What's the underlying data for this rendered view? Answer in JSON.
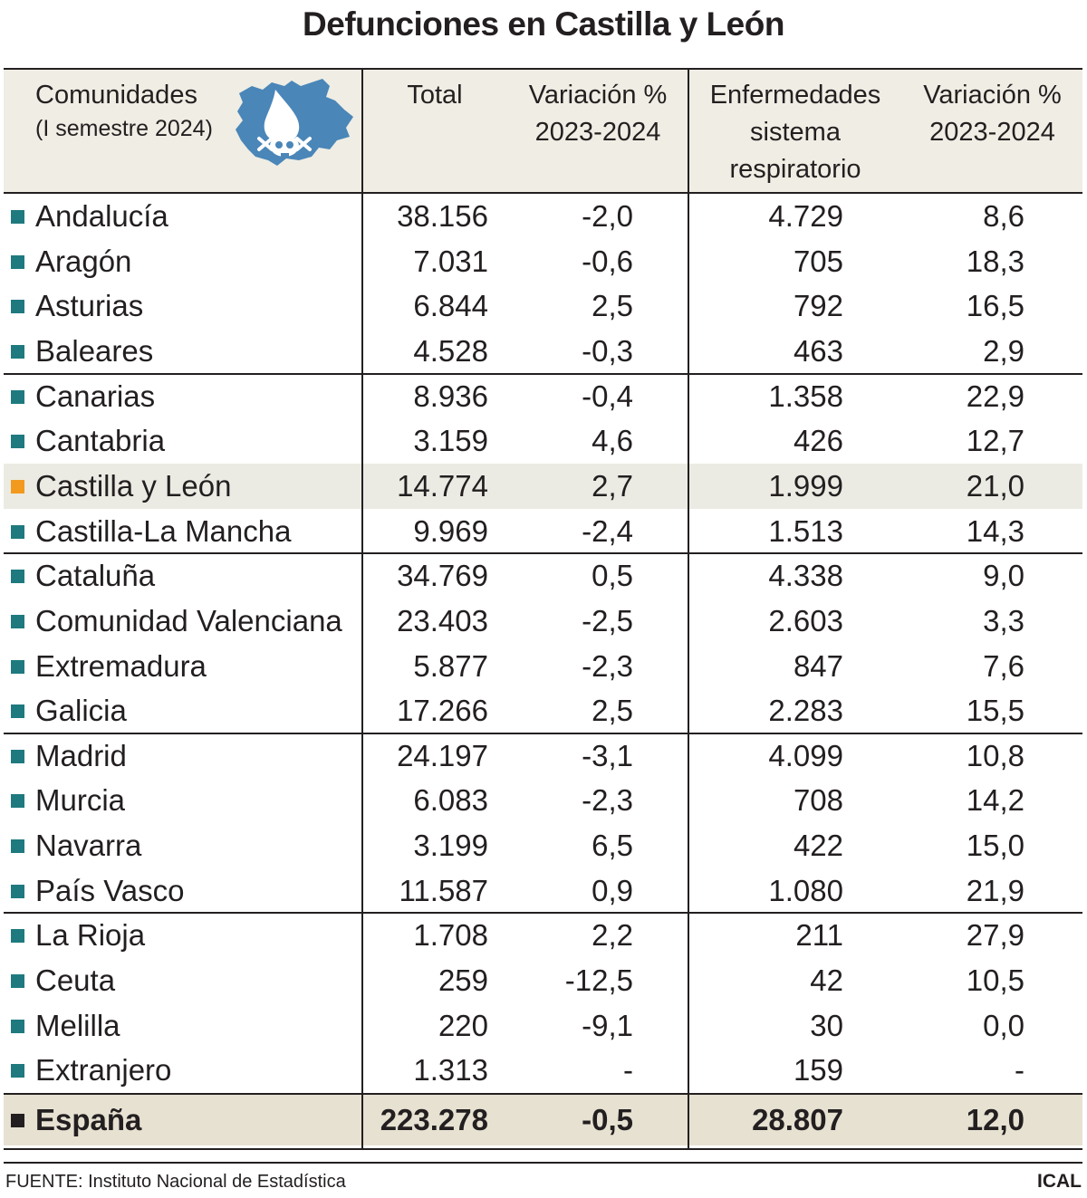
{
  "title": "Defunciones en Castilla y León",
  "colors": {
    "header_bg": "#efede4",
    "highlight_row_bg": "#ebebe3",
    "total_row_bg": "#e6e1d1",
    "marker_default": "#1e7a7e",
    "marker_highlight": "#f29a1e",
    "marker_total": "#231f20",
    "map_fill": "#4a86b8"
  },
  "header": {
    "comunidades_line1": "Comunidades",
    "comunidades_line2": "(I semestre 2024)",
    "total": "Total",
    "variacion1_line1": "Variación %",
    "variacion1_line2": "2023-2024",
    "resp_line1": "Enfermedades",
    "resp_line2": "sistema",
    "resp_line3": "respiratorio",
    "variacion2_line1": "Variación %",
    "variacion2_line2": "2023-2024",
    "map_icon": "castilla-y-leon-map-skull-icon"
  },
  "chart_data": {
    "type": "table",
    "title": "Defunciones en Castilla y León",
    "columns": [
      "Comunidades (I semestre 2024)",
      "Total",
      "Variación % 2023-2024",
      "Enfermedades sistema respiratorio",
      "Variación % 2023-2024"
    ],
    "rows": [
      {
        "name": "Andalucía",
        "total": "38.156",
        "var_total": "-2,0",
        "resp": "4.729",
        "var_resp": "8,6"
      },
      {
        "name": "Aragón",
        "total": "7.031",
        "var_total": "-0,6",
        "resp": "705",
        "var_resp": "18,3"
      },
      {
        "name": "Asturias",
        "total": "6.844",
        "var_total": "2,5",
        "resp": "792",
        "var_resp": "16,5"
      },
      {
        "name": "Baleares",
        "total": "4.528",
        "var_total": "-0,3",
        "resp": "463",
        "var_resp": "2,9"
      },
      {
        "name": "Canarias",
        "total": "8.936",
        "var_total": "-0,4",
        "resp": "1.358",
        "var_resp": "22,9"
      },
      {
        "name": "Cantabria",
        "total": "3.159",
        "var_total": "4,6",
        "resp": "426",
        "var_resp": "12,7"
      },
      {
        "name": "Castilla y León",
        "total": "14.774",
        "var_total": "2,7",
        "resp": "1.999",
        "var_resp": "21,0",
        "highlight": true
      },
      {
        "name": "Castilla-La Mancha",
        "total": "9.969",
        "var_total": "-2,4",
        "resp": "1.513",
        "var_resp": "14,3"
      },
      {
        "name": "Cataluña",
        "total": "34.769",
        "var_total": "0,5",
        "resp": "4.338",
        "var_resp": "9,0"
      },
      {
        "name": "Comunidad Valenciana",
        "total": "23.403",
        "var_total": "-2,5",
        "resp": "2.603",
        "var_resp": "3,3"
      },
      {
        "name": "Extremadura",
        "total": "5.877",
        "var_total": "-2,3",
        "resp": "847",
        "var_resp": "7,6"
      },
      {
        "name": "Galicia",
        "total": "17.266",
        "var_total": "2,5",
        "resp": "2.283",
        "var_resp": "15,5"
      },
      {
        "name": "Madrid",
        "total": "24.197",
        "var_total": "-3,1",
        "resp": "4.099",
        "var_resp": "10,8"
      },
      {
        "name": "Murcia",
        "total": "6.083",
        "var_total": "-2,3",
        "resp": "708",
        "var_resp": "14,2"
      },
      {
        "name": "Navarra",
        "total": "3.199",
        "var_total": "6,5",
        "resp": "422",
        "var_resp": "15,0"
      },
      {
        "name": "País Vasco",
        "total": "11.587",
        "var_total": "0,9",
        "resp": "1.080",
        "var_resp": "21,9"
      },
      {
        "name": "La Rioja",
        "total": "1.708",
        "var_total": "2,2",
        "resp": "211",
        "var_resp": "27,9"
      },
      {
        "name": "Ceuta",
        "total": "259",
        "var_total": "-12,5",
        "resp": "42",
        "var_resp": "10,5"
      },
      {
        "name": "Melilla",
        "total": "220",
        "var_total": "-9,1",
        "resp": "30",
        "var_resp": "0,0"
      },
      {
        "name": "Extranjero",
        "total": "1.313",
        "var_total": "-",
        "resp": "159",
        "var_resp": "-"
      }
    ],
    "total_row": {
      "name": "España",
      "total": "223.278",
      "var_total": "-0,5",
      "resp": "28.807",
      "var_resp": "12,0"
    },
    "group_size": 4
  },
  "footer": {
    "source": "FUENTE: Instituto Nacional de Estadística",
    "credit": "ICAL"
  }
}
